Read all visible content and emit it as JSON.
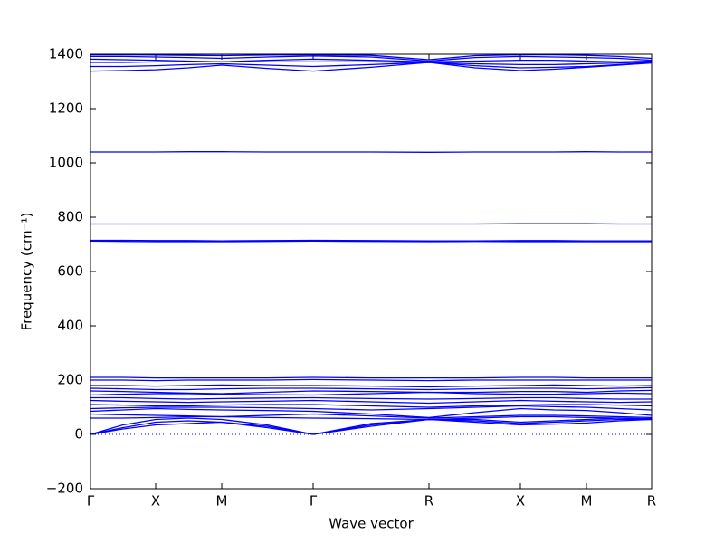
{
  "chart_data": {
    "type": "line",
    "xlabel": "Wave vector",
    "ylabel": "Frequency (cm⁻¹)",
    "x": [
      0,
      36,
      72,
      108,
      145,
      195,
      246,
      310,
      374,
      425,
      475,
      512,
      548,
      584,
      620
    ],
    "xlim": [
      0,
      620
    ],
    "xticks": [
      {
        "value": 0,
        "label": "Γ"
      },
      {
        "value": 72,
        "label": "X"
      },
      {
        "value": 145,
        "label": "M"
      },
      {
        "value": 246,
        "label": "Γ"
      },
      {
        "value": 374,
        "label": "R"
      },
      {
        "value": 475,
        "label": "X"
      },
      {
        "value": 548,
        "label": "M"
      },
      {
        "value": 620,
        "label": "R"
      }
    ],
    "ylim": [
      -200,
      1400
    ],
    "yticks": [
      {
        "value": -200,
        "label": "−200"
      },
      0,
      200,
      400,
      600,
      800,
      1000,
      1200,
      1400
    ],
    "hlines": [
      0
    ],
    "series": [
      {
        "color": "#0000ff",
        "values": [
          0,
          20,
          35,
          40,
          45,
          25,
          0,
          30,
          55,
          45,
          35,
          38,
          42,
          50,
          55
        ]
      },
      {
        "color": "#0000ff",
        "values": [
          0,
          25,
          45,
          50,
          45,
          30,
          0,
          35,
          55,
          50,
          40,
          45,
          50,
          55,
          55
        ]
      },
      {
        "color": "#0000ff",
        "values": [
          0,
          35,
          55,
          60,
          55,
          35,
          0,
          40,
          55,
          55,
          45,
          50,
          55,
          60,
          55
        ]
      },
      {
        "color": "#0000ff",
        "values": [
          60,
          60,
          62,
          65,
          65,
          62,
          60,
          58,
          55,
          60,
          65,
          65,
          62,
          60,
          58
        ]
      },
      {
        "color": "#0000ff",
        "values": [
          75,
          72,
          70,
          68,
          65,
          70,
          75,
          68,
          60,
          65,
          70,
          70,
          68,
          65,
          62
        ]
      },
      {
        "color": "#0000ff",
        "values": [
          85,
          90,
          95,
          92,
          90,
          88,
          85,
          75,
          62,
          80,
          95,
          90,
          88,
          80,
          70
        ]
      },
      {
        "color": "#0000ff",
        "values": [
          95,
          98,
          100,
          100,
          100,
          98,
          95,
          90,
          95,
          100,
          105,
          102,
          100,
          95,
          90
        ]
      },
      {
        "color": "#0000ff",
        "values": [
          110,
          108,
          105,
          105,
          108,
          110,
          110,
          105,
          100,
          105,
          108,
          110,
          110,
          108,
          105
        ]
      },
      {
        "color": "#0000ff",
        "values": [
          125,
          122,
          120,
          118,
          120,
          122,
          125,
          120,
          115,
          120,
          125,
          122,
          120,
          118,
          120
        ]
      },
      {
        "color": "#0000ff",
        "values": [
          135,
          135,
          132,
          130,
          132,
          134,
          135,
          132,
          130,
          132,
          135,
          135,
          132,
          130,
          130
        ]
      },
      {
        "color": "#0000ff",
        "values": [
          145,
          148,
          150,
          150,
          148,
          146,
          145,
          150,
          155,
          150,
          148,
          148,
          150,
          152,
          150
        ]
      },
      {
        "color": "#0000ff",
        "values": [
          160,
          158,
          155,
          152,
          150,
          155,
          160,
          158,
          155,
          155,
          158,
          158,
          155,
          160,
          162
        ]
      },
      {
        "color": "#0000ff",
        "values": [
          170,
          168,
          165,
          165,
          168,
          170,
          170,
          168,
          165,
          168,
          170,
          170,
          168,
          170,
          172
        ]
      },
      {
        "color": "#0000ff",
        "values": [
          180,
          180,
          178,
          180,
          182,
          180,
          180,
          178,
          175,
          178,
          180,
          182,
          180,
          178,
          180
        ]
      },
      {
        "color": "#0000ff",
        "values": [
          200,
          200,
          198,
          200,
          200,
          200,
          202,
          200,
          198,
          200,
          200,
          200,
          200,
          200,
          200
        ]
      },
      {
        "color": "#0000ff",
        "values": [
          210,
          210,
          208,
          208,
          208,
          208,
          210,
          208,
          208,
          208,
          210,
          210,
          208,
          208,
          208
        ]
      },
      {
        "color": "#0000ff",
        "values": [
          712,
          711,
          710,
          710,
          710,
          711,
          712,
          711,
          710,
          711,
          710,
          710,
          710,
          710,
          710
        ]
      },
      {
        "color": "#0000ff",
        "values": [
          715,
          715,
          714,
          714,
          713,
          714,
          715,
          714,
          713,
          713,
          714,
          714,
          713,
          713,
          713
        ]
      },
      {
        "color": "#0000ff",
        "values": [
          775,
          775,
          775,
          775,
          775,
          775,
          775,
          775,
          775,
          775,
          776,
          776,
          776,
          775,
          775
        ]
      },
      {
        "color": "#0000ff",
        "values": [
          1040,
          1040,
          1040,
          1041,
          1041,
          1040,
          1040,
          1040,
          1039,
          1040,
          1040,
          1040,
          1041,
          1040,
          1040
        ]
      },
      {
        "color": "#0000ff",
        "values": [
          1338,
          1340,
          1343,
          1350,
          1360,
          1348,
          1338,
          1352,
          1370,
          1350,
          1340,
          1345,
          1352,
          1360,
          1368
        ]
      },
      {
        "color": "#0000ff",
        "values": [
          1355,
          1355,
          1358,
          1362,
          1365,
          1360,
          1355,
          1362,
          1370,
          1358,
          1350,
          1352,
          1355,
          1362,
          1370
        ]
      },
      {
        "color": "#0000ff",
        "values": [
          1370,
          1370,
          1372,
          1372,
          1372,
          1372,
          1372,
          1372,
          1370,
          1365,
          1362,
          1362,
          1365,
          1368,
          1372
        ]
      },
      {
        "color": "#0000ff",
        "values": [
          1382,
          1380,
          1378,
          1375,
          1372,
          1378,
          1382,
          1378,
          1372,
          1375,
          1378,
          1378,
          1375,
          1372,
          1375
        ]
      },
      {
        "color": "#0000ff",
        "values": [
          1392,
          1392,
          1390,
          1388,
          1385,
          1390,
          1394,
          1390,
          1375,
          1388,
          1392,
          1390,
          1388,
          1385,
          1378
        ]
      },
      {
        "color": "#0000ff",
        "values": [
          1398,
          1398,
          1397,
          1396,
          1395,
          1397,
          1398,
          1396,
          1380,
          1395,
          1398,
          1398,
          1396,
          1392,
          1385
        ]
      }
    ]
  }
}
